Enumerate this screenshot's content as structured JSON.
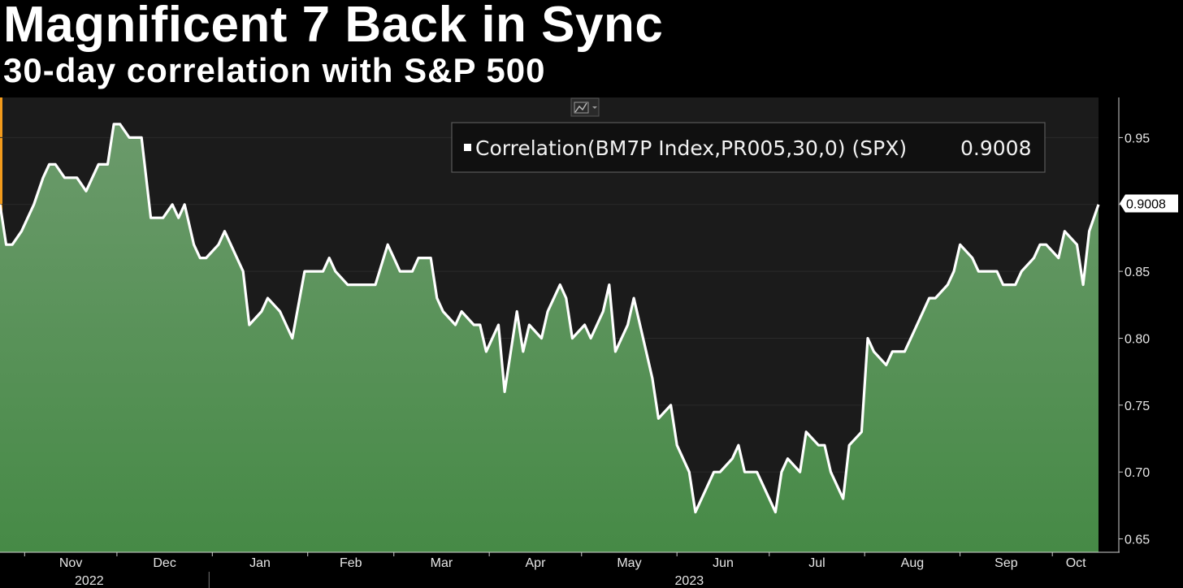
{
  "title": "Magnificent 7 Back in Sync",
  "subtitle": "30-day correlation with S&P 500",
  "chart_data": {
    "type": "area",
    "series": [
      {
        "name": "Correlation(BM7P Index,PR005,30,0) (SPX)",
        "last_value_label": "0.9008",
        "color": "#ffffff"
      }
    ],
    "ylim": [
      0.64,
      0.98
    ],
    "yticks": [
      0.65,
      0.7,
      0.75,
      0.8,
      0.85,
      0.9,
      0.95
    ],
    "ytick_labels": [
      "0.65",
      "0.70",
      "0.75",
      "0.80",
      "0.85",
      "0.90",
      "0.95"
    ],
    "last_value": 0.9008,
    "month_labels": [
      "Nov",
      "Dec",
      "Jan",
      "Feb",
      "Mar",
      "Apr",
      "May",
      "Jun",
      "Jul",
      "Aug",
      "Sep",
      "Oct"
    ],
    "year_labels": [
      "2022",
      "2023"
    ],
    "x_start": "2022-10-24",
    "x_end": "2023-10-16",
    "x": [
      "2022-10-24",
      "2022-10-26",
      "2022-10-28",
      "2022-10-31",
      "2022-11-02",
      "2022-11-04",
      "2022-11-07",
      "2022-11-09",
      "2022-11-11",
      "2022-11-14",
      "2022-11-16",
      "2022-11-18",
      "2022-11-21",
      "2022-11-23",
      "2022-11-25",
      "2022-11-28",
      "2022-11-30",
      "2022-12-02",
      "2022-12-05",
      "2022-12-07",
      "2022-12-09",
      "2022-12-12",
      "2022-12-14",
      "2022-12-16",
      "2022-12-19",
      "2022-12-21",
      "2022-12-23",
      "2022-12-26",
      "2022-12-28",
      "2022-12-30",
      "2023-01-03",
      "2023-01-05",
      "2023-01-09",
      "2023-01-11",
      "2023-01-13",
      "2023-01-17",
      "2023-01-19",
      "2023-01-23",
      "2023-01-25",
      "2023-01-27",
      "2023-01-31",
      "2023-02-02",
      "2023-02-06",
      "2023-02-08",
      "2023-02-10",
      "2023-02-14",
      "2023-02-16",
      "2023-02-21",
      "2023-02-23",
      "2023-02-27",
      "2023-03-01",
      "2023-03-03",
      "2023-03-07",
      "2023-03-09",
      "2023-03-13",
      "2023-03-15",
      "2023-03-17",
      "2023-03-21",
      "2023-03-23",
      "2023-03-27",
      "2023-03-29",
      "2023-03-31",
      "2023-04-04",
      "2023-04-06",
      "2023-04-10",
      "2023-04-12",
      "2023-04-14",
      "2023-04-18",
      "2023-04-20",
      "2023-04-24",
      "2023-04-26",
      "2023-04-28",
      "2023-05-02",
      "2023-05-04",
      "2023-05-08",
      "2023-05-10",
      "2023-05-12",
      "2023-05-16",
      "2023-05-18",
      "2023-05-22",
      "2023-05-24",
      "2023-05-26",
      "2023-05-30",
      "2023-06-01",
      "2023-06-05",
      "2023-06-07",
      "2023-06-09",
      "2023-06-13",
      "2023-06-15",
      "2023-06-19",
      "2023-06-21",
      "2023-06-23",
      "2023-06-27",
      "2023-06-29",
      "2023-07-03",
      "2023-07-05",
      "2023-07-07",
      "2023-07-11",
      "2023-07-13",
      "2023-07-17",
      "2023-07-19",
      "2023-07-21",
      "2023-07-25",
      "2023-07-27",
      "2023-07-31",
      "2023-08-02",
      "2023-08-04",
      "2023-08-08",
      "2023-08-10",
      "2023-08-14",
      "2023-08-16",
      "2023-08-18",
      "2023-08-22",
      "2023-08-24",
      "2023-08-28",
      "2023-08-30",
      "2023-09-01",
      "2023-09-05",
      "2023-09-07",
      "2023-09-11",
      "2023-09-13",
      "2023-09-15",
      "2023-09-19",
      "2023-09-21",
      "2023-09-25",
      "2023-09-27",
      "2023-09-29",
      "2023-10-03",
      "2023-10-05",
      "2023-10-09",
      "2023-10-11",
      "2023-10-13",
      "2023-10-16"
    ],
    "values": [
      0.9,
      0.87,
      0.87,
      0.88,
      0.89,
      0.9,
      0.92,
      0.93,
      0.93,
      0.92,
      0.92,
      0.92,
      0.91,
      0.92,
      0.93,
      0.93,
      0.96,
      0.96,
      0.95,
      0.95,
      0.95,
      0.89,
      0.89,
      0.89,
      0.9,
      0.89,
      0.9,
      0.87,
      0.86,
      0.86,
      0.87,
      0.88,
      0.86,
      0.85,
      0.81,
      0.82,
      0.83,
      0.82,
      0.81,
      0.8,
      0.85,
      0.85,
      0.85,
      0.86,
      0.85,
      0.84,
      0.84,
      0.84,
      0.84,
      0.87,
      0.86,
      0.85,
      0.85,
      0.86,
      0.86,
      0.83,
      0.82,
      0.81,
      0.82,
      0.81,
      0.81,
      0.79,
      0.81,
      0.76,
      0.82,
      0.79,
      0.81,
      0.8,
      0.82,
      0.84,
      0.83,
      0.8,
      0.81,
      0.8,
      0.82,
      0.84,
      0.79,
      0.81,
      0.83,
      0.79,
      0.77,
      0.74,
      0.75,
      0.72,
      0.7,
      0.67,
      0.68,
      0.7,
      0.7,
      0.71,
      0.72,
      0.7,
      0.7,
      0.69,
      0.67,
      0.7,
      0.71,
      0.7,
      0.73,
      0.72,
      0.72,
      0.7,
      0.68,
      0.72,
      0.73,
      0.8,
      0.79,
      0.78,
      0.79,
      0.79,
      0.8,
      0.81,
      0.83,
      0.83,
      0.84,
      0.85,
      0.87,
      0.86,
      0.85,
      0.85,
      0.85,
      0.84,
      0.84,
      0.85,
      0.86,
      0.87,
      0.87,
      0.86,
      0.88,
      0.87,
      0.84,
      0.88,
      0.9
    ]
  }
}
